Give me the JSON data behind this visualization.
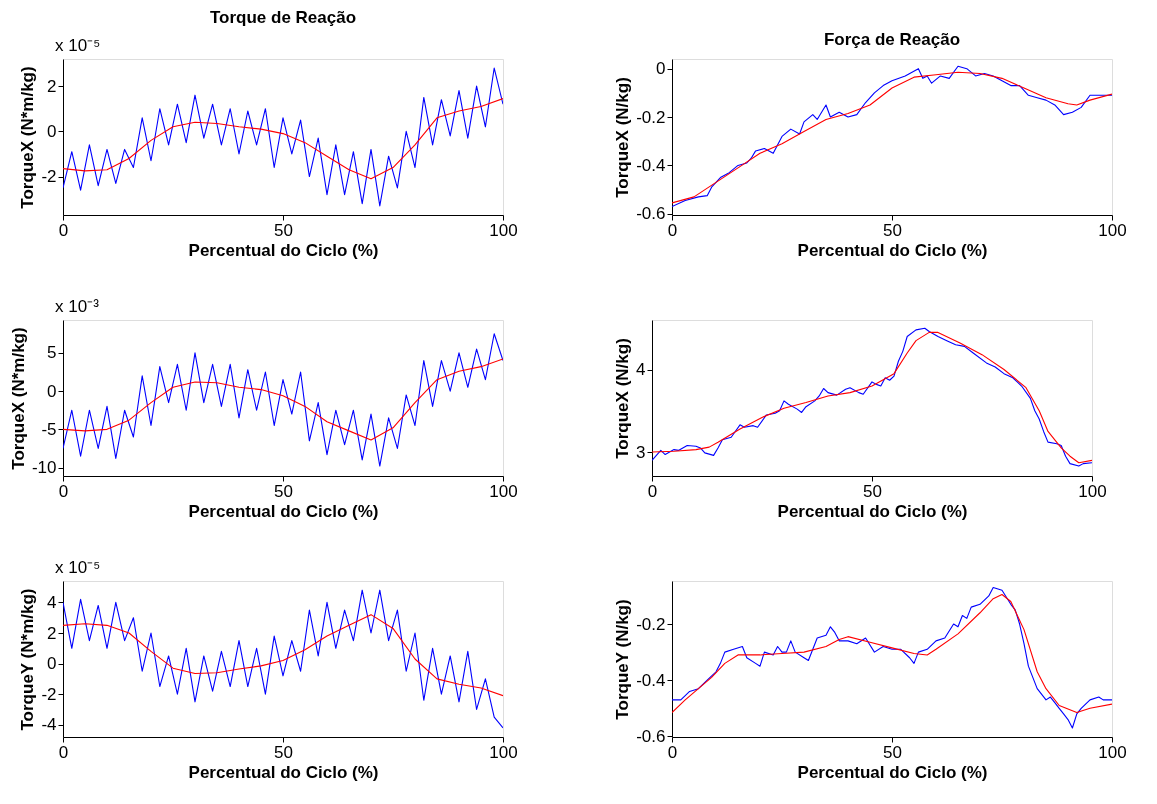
{
  "chart_data": [
    {
      "type": "line",
      "title": "Torque de Reação",
      "xlabel": "Percentual do Ciclo (%)",
      "ylabel": "TorqueX (N*m/kg)",
      "annotations": [
        "x 10⁻⁵"
      ],
      "xlim": [
        0,
        100
      ],
      "xticks": [
        0,
        50,
        100
      ],
      "ylim": [
        -3.7,
        3.2
      ],
      "yticks": [
        -2,
        0,
        2
      ],
      "grid": false,
      "legend": false,
      "series": [
        {
          "color": "#0000ff",
          "x": [
            0,
            2,
            4,
            6,
            8,
            10,
            12,
            14,
            16,
            18,
            20,
            22,
            24,
            26,
            28,
            30,
            32,
            34,
            36,
            38,
            40,
            42,
            44,
            46,
            48,
            50,
            52,
            54,
            56,
            58,
            60,
            62,
            64,
            66,
            68,
            70,
            72,
            74,
            76,
            78,
            80,
            82,
            84,
            86,
            88,
            90,
            92,
            94,
            96,
            98,
            100
          ],
          "values": [
            -2.5,
            -0.9,
            -2.6,
            -0.6,
            -2.4,
            -0.8,
            -2.3,
            -0.8,
            -1.6,
            0.6,
            -1.3,
            1.0,
            -0.6,
            1.2,
            -0.5,
            1.6,
            -0.3,
            1.2,
            -0.6,
            1.0,
            -1.0,
            0.9,
            -0.6,
            1.0,
            -1.6,
            0.6,
            -1.0,
            0.5,
            -2.0,
            -0.3,
            -2.8,
            -0.6,
            -2.8,
            -0.9,
            -3.2,
            -0.8,
            -3.3,
            -1.1,
            -2.5,
            0.0,
            -1.6,
            1.5,
            -0.6,
            1.4,
            -0.2,
            1.8,
            -0.3,
            2.0,
            0.2,
            2.8,
            1.2
          ]
        },
        {
          "color": "#ff0000",
          "x": [
            0,
            5,
            10,
            15,
            20,
            25,
            30,
            35,
            40,
            45,
            50,
            55,
            60,
            65,
            70,
            75,
            80,
            85,
            90,
            95,
            100
          ],
          "values": [
            -1.65,
            -1.75,
            -1.7,
            -1.2,
            -0.4,
            0.2,
            0.4,
            0.35,
            0.2,
            0.1,
            -0.1,
            -0.5,
            -1.1,
            -1.7,
            -2.1,
            -1.6,
            -0.6,
            0.6,
            0.9,
            1.1,
            1.45
          ]
        }
      ]
    },
    {
      "type": "line",
      "title": "Força de Reação",
      "xlabel": "Percentual do Ciclo (%)",
      "ylabel": "TorqueX (N/kg)",
      "xlim": [
        0,
        100
      ],
      "xticks": [
        0,
        50,
        100
      ],
      "ylim": [
        -0.605,
        0.04
      ],
      "yticks": [
        -0.6,
        -0.4,
        -0.2,
        0
      ],
      "grid": false,
      "legend": false,
      "series": [
        {
          "color": "#0000ff",
          "x": [
            0,
            3,
            6,
            8,
            9,
            11,
            13,
            15,
            17,
            18,
            19,
            21,
            23,
            25,
            27,
            29,
            30,
            32,
            33,
            35,
            36,
            38,
            40,
            42,
            44,
            46,
            48,
            50,
            53,
            56,
            57,
            58,
            59,
            61,
            63,
            65,
            67,
            69,
            71,
            73,
            75,
            77,
            79,
            81,
            83,
            85,
            87,
            89,
            91,
            93,
            95,
            97,
            100
          ],
          "values": [
            -0.57,
            -0.545,
            -0.53,
            -0.525,
            -0.49,
            -0.45,
            -0.43,
            -0.4,
            -0.39,
            -0.37,
            -0.34,
            -0.33,
            -0.35,
            -0.28,
            -0.25,
            -0.27,
            -0.22,
            -0.19,
            -0.21,
            -0.15,
            -0.2,
            -0.18,
            -0.2,
            -0.19,
            -0.14,
            -0.1,
            -0.07,
            -0.05,
            -0.03,
            0.0,
            -0.04,
            -0.03,
            -0.06,
            -0.03,
            -0.04,
            0.01,
            0.0,
            -0.03,
            -0.02,
            -0.03,
            -0.05,
            -0.07,
            -0.07,
            -0.11,
            -0.12,
            -0.13,
            -0.15,
            -0.19,
            -0.18,
            -0.16,
            -0.11,
            -0.11,
            -0.11
          ]
        },
        {
          "color": "#ff0000",
          "x": [
            0,
            5,
            10,
            15,
            20,
            25,
            30,
            35,
            40,
            45,
            50,
            55,
            60,
            65,
            70,
            75,
            80,
            85,
            90,
            92,
            95,
            100
          ],
          "values": [
            -0.555,
            -0.53,
            -0.47,
            -0.41,
            -0.35,
            -0.31,
            -0.26,
            -0.21,
            -0.185,
            -0.15,
            -0.08,
            -0.035,
            -0.025,
            -0.015,
            -0.02,
            -0.04,
            -0.08,
            -0.12,
            -0.145,
            -0.15,
            -0.13,
            -0.105
          ]
        }
      ]
    },
    {
      "type": "line",
      "xlabel": "Percentual do Ciclo (%)",
      "ylabel": "TorqueX (N*m/kg)",
      "annotations": [
        "x 10⁻³"
      ],
      "xlim": [
        0,
        100
      ],
      "xticks": [
        0,
        50,
        100
      ],
      "ylim": [
        -11.1,
        9.3
      ],
      "yticks": [
        -10,
        -5,
        0,
        5
      ],
      "grid": false,
      "legend": false,
      "series": [
        {
          "color": "#0000ff",
          "x": [
            0,
            2,
            4,
            6,
            8,
            10,
            12,
            14,
            16,
            18,
            20,
            22,
            24,
            26,
            28,
            30,
            32,
            34,
            36,
            38,
            40,
            42,
            44,
            46,
            48,
            50,
            52,
            54,
            56,
            58,
            60,
            62,
            64,
            66,
            68,
            70,
            72,
            74,
            76,
            78,
            80,
            82,
            84,
            86,
            88,
            90,
            92,
            94,
            96,
            98,
            100
          ],
          "values": [
            -7.5,
            -2.5,
            -8.5,
            -2.5,
            -7.5,
            -2,
            -8.8,
            -2.5,
            -6,
            2,
            -4.5,
            3.2,
            -1.5,
            3.5,
            -2.5,
            5.0,
            -1.5,
            3.5,
            -2,
            3.5,
            -3.5,
            2.8,
            -2.5,
            2.5,
            -4.5,
            1.5,
            -3,
            2.5,
            -6.5,
            -1.5,
            -8.3,
            -2.5,
            -7,
            -2.5,
            -9,
            -3,
            -9.8,
            -3.5,
            -7.5,
            -0.5,
            -4.5,
            4,
            -2,
            4,
            0,
            5,
            0.5,
            5.5,
            1.5,
            7.5,
            4
          ]
        },
        {
          "color": "#ff0000",
          "x": [
            0,
            5,
            10,
            15,
            20,
            25,
            30,
            35,
            40,
            45,
            50,
            55,
            60,
            65,
            70,
            75,
            80,
            85,
            90,
            95,
            100
          ],
          "values": [
            -5,
            -5.2,
            -5,
            -3.8,
            -1.5,
            0.5,
            1.2,
            1.1,
            0.5,
            0.2,
            -0.6,
            -2.0,
            -4.0,
            -5.2,
            -6.4,
            -4.8,
            -1.5,
            1.5,
            2.6,
            3.2,
            4.2
          ]
        }
      ]
    },
    {
      "type": "line",
      "xlabel": "Percentual do Ciclo (%)",
      "ylabel": "TorqueX (N/kg)",
      "xlim": [
        0,
        100
      ],
      "xticks": [
        0,
        50,
        100
      ],
      "ylim": [
        2.71,
        4.6
      ],
      "yticks": [
        3,
        4
      ],
      "grid": false,
      "legend": false,
      "series": [
        {
          "color": "#0000ff",
          "x": [
            0,
            2,
            3,
            5,
            6,
            8,
            10,
            11,
            12,
            14,
            15,
            16,
            18,
            20,
            21,
            23,
            24,
            26,
            28,
            29,
            30,
            31,
            33,
            34,
            35,
            37,
            38,
            39,
            40,
            42,
            44,
            45,
            47,
            48,
            50,
            51,
            52,
            53,
            54,
            55,
            56,
            57,
            58,
            60,
            62,
            63,
            65,
            67,
            69,
            71,
            73,
            76,
            78,
            80,
            82,
            83,
            84,
            86,
            87,
            88,
            89,
            90,
            92,
            93,
            94,
            95,
            97,
            98,
            100
          ],
          "values": [
            2.9,
            3.02,
            2.97,
            3.03,
            3.02,
            3.08,
            3.07,
            3.05,
            2.99,
            2.96,
            3.05,
            3.15,
            3.18,
            3.33,
            3.3,
            3.32,
            3.3,
            3.45,
            3.47,
            3.5,
            3.62,
            3.58,
            3.52,
            3.48,
            3.55,
            3.62,
            3.68,
            3.77,
            3.72,
            3.69,
            3.76,
            3.78,
            3.72,
            3.7,
            3.85,
            3.82,
            3.8,
            3.9,
            3.87,
            3.92,
            4.1,
            4.22,
            4.4,
            4.48,
            4.5,
            4.46,
            4.4,
            4.35,
            4.3,
            4.28,
            4.2,
            4.08,
            4.03,
            3.95,
            3.9,
            3.85,
            3.8,
            3.65,
            3.5,
            3.4,
            3.25,
            3.12,
            3.1,
            3.08,
            2.95,
            2.86,
            2.83,
            2.86,
            2.87
          ]
        },
        {
          "color": "#ff0000",
          "x": [
            0,
            5,
            10,
            13,
            15,
            20,
            25,
            30,
            35,
            40,
            45,
            50,
            55,
            58,
            60,
            63,
            65,
            70,
            75,
            80,
            85,
            88,
            90,
            93,
            95,
            97,
            100
          ],
          "values": [
            3.0,
            3.01,
            3.03,
            3.06,
            3.12,
            3.28,
            3.42,
            3.53,
            3.6,
            3.68,
            3.72,
            3.8,
            3.95,
            4.2,
            4.35,
            4.45,
            4.45,
            4.32,
            4.18,
            4.0,
            3.78,
            3.5,
            3.25,
            3.05,
            2.95,
            2.87,
            2.9
          ]
        }
      ]
    },
    {
      "type": "line",
      "xlabel": "Percentual do Ciclo (%)",
      "ylabel": "TorqueY (N*m/kg)",
      "annotations": [
        "x 10⁻⁵"
      ],
      "xlim": [
        0,
        100
      ],
      "xticks": [
        0,
        50,
        100
      ],
      "ylim": [
        -4.8,
        5.4
      ],
      "yticks": [
        -4,
        -2,
        0,
        2,
        4
      ],
      "grid": false,
      "legend": false,
      "series": [
        {
          "color": "#0000ff",
          "x": [
            0,
            2,
            4,
            6,
            8,
            10,
            12,
            14,
            16,
            18,
            20,
            22,
            24,
            26,
            28,
            30,
            32,
            34,
            36,
            38,
            40,
            42,
            44,
            46,
            48,
            50,
            52,
            54,
            56,
            58,
            60,
            62,
            64,
            66,
            68,
            70,
            72,
            74,
            76,
            78,
            80,
            82,
            84,
            86,
            88,
            90,
            92,
            94,
            96,
            98,
            100
          ],
          "values": [
            4.0,
            1.0,
            4.2,
            1.5,
            3.8,
            1.0,
            4.0,
            1.5,
            3.0,
            -0.5,
            2.0,
            -1.5,
            0.5,
            -2.0,
            1.0,
            -2.5,
            0.5,
            -1.8,
            0.8,
            -1.5,
            1.5,
            -1.5,
            1.0,
            -2.0,
            1.8,
            -0.8,
            1.5,
            -0.5,
            3.5,
            0.5,
            4.0,
            1.0,
            3.5,
            1.5,
            4.8,
            2.0,
            4.8,
            1.5,
            3.5,
            -0.5,
            2.0,
            -2.4,
            1.0,
            -2.0,
            0.5,
            -2.5,
            0.8,
            -3.0,
            -1.0,
            -3.5,
            -4.2
          ]
        },
        {
          "color": "#ff0000",
          "x": [
            0,
            5,
            10,
            15,
            20,
            25,
            30,
            35,
            40,
            45,
            50,
            55,
            60,
            65,
            70,
            75,
            80,
            85,
            90,
            95,
            100
          ],
          "values": [
            2.5,
            2.6,
            2.5,
            2.0,
            0.8,
            -0.3,
            -0.65,
            -0.6,
            -0.35,
            -0.15,
            0.2,
            0.9,
            1.8,
            2.5,
            3.2,
            2.3,
            0.3,
            -1.0,
            -1.35,
            -1.6,
            -2.1
          ]
        }
      ]
    },
    {
      "type": "line",
      "xlabel": "Percentual do Ciclo (%)",
      "ylabel": "TorqueY (N/kg)",
      "xlim": [
        0,
        100
      ],
      "xticks": [
        0,
        50,
        100
      ],
      "ylim": [
        -0.602,
        -0.047
      ],
      "yticks": [
        -0.6,
        -0.4,
        -0.2
      ],
      "grid": false,
      "legend": false,
      "series": [
        {
          "color": "#0000ff",
          "x": [
            0,
            2,
            4,
            6,
            8,
            10,
            11,
            12,
            14,
            16,
            17,
            19,
            20,
            21,
            23,
            24,
            25,
            26,
            27,
            28,
            30,
            31,
            32,
            33,
            35,
            36,
            37,
            38,
            40,
            42,
            44,
            46,
            48,
            50,
            52,
            54,
            55,
            56,
            58,
            60,
            62,
            64,
            65,
            66,
            67,
            68,
            70,
            72,
            73,
            75,
            77,
            78,
            79,
            80,
            81,
            82,
            83,
            85,
            86,
            87,
            88,
            89,
            90,
            91,
            92,
            93,
            95,
            97,
            98,
            100
          ],
          "values": [
            -0.47,
            -0.47,
            -0.44,
            -0.43,
            -0.4,
            -0.37,
            -0.34,
            -0.3,
            -0.29,
            -0.28,
            -0.32,
            -0.34,
            -0.35,
            -0.3,
            -0.31,
            -0.28,
            -0.3,
            -0.3,
            -0.26,
            -0.3,
            -0.32,
            -0.33,
            -0.29,
            -0.25,
            -0.24,
            -0.21,
            -0.23,
            -0.26,
            -0.26,
            -0.27,
            -0.25,
            -0.3,
            -0.28,
            -0.29,
            -0.29,
            -0.32,
            -0.34,
            -0.3,
            -0.29,
            -0.26,
            -0.25,
            -0.2,
            -0.21,
            -0.17,
            -0.18,
            -0.14,
            -0.13,
            -0.1,
            -0.07,
            -0.08,
            -0.13,
            -0.15,
            -0.2,
            -0.27,
            -0.35,
            -0.39,
            -0.43,
            -0.47,
            -0.46,
            -0.48,
            -0.5,
            -0.52,
            -0.54,
            -0.57,
            -0.52,
            -0.5,
            -0.47,
            -0.46,
            -0.47,
            -0.47
          ]
        },
        {
          "color": "#ff0000",
          "x": [
            0,
            3,
            6,
            9,
            12,
            15,
            20,
            25,
            30,
            35,
            38,
            40,
            45,
            50,
            55,
            58,
            60,
            65,
            70,
            73,
            75,
            77,
            80,
            83,
            85,
            88,
            92,
            95,
            100
          ],
          "values": [
            -0.515,
            -0.47,
            -0.43,
            -0.39,
            -0.34,
            -0.31,
            -0.31,
            -0.305,
            -0.3,
            -0.28,
            -0.255,
            -0.245,
            -0.265,
            -0.285,
            -0.305,
            -0.31,
            -0.29,
            -0.235,
            -0.16,
            -0.11,
            -0.095,
            -0.12,
            -0.22,
            -0.37,
            -0.43,
            -0.49,
            -0.515,
            -0.5,
            -0.485
          ]
        }
      ]
    }
  ]
}
